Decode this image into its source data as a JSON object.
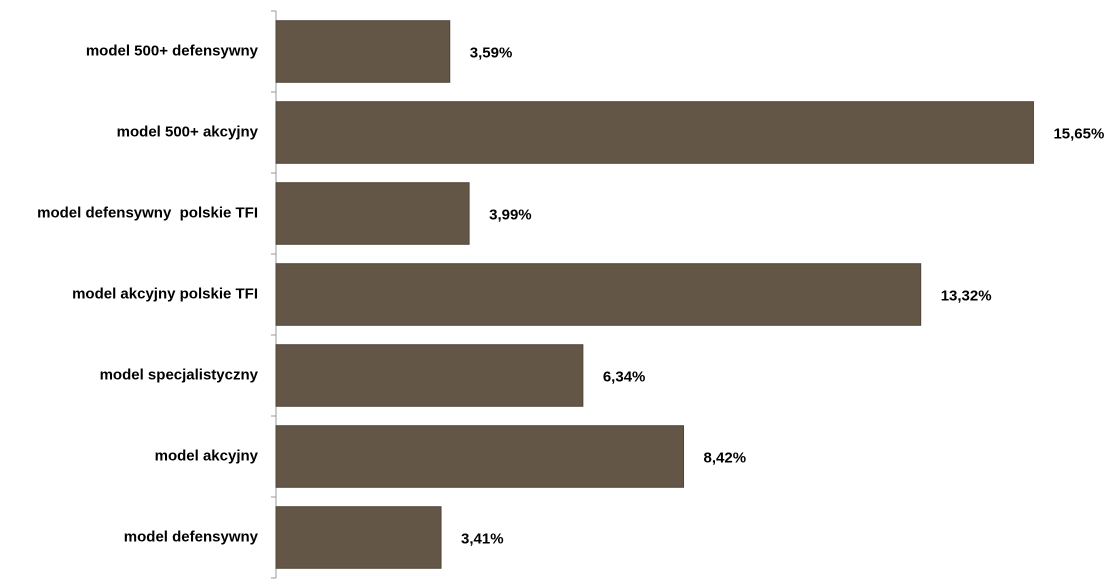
{
  "chart_data": {
    "type": "bar",
    "orientation": "horizontal",
    "categories": [
      "model 500+ defensywny",
      "model 500+ akcyjny",
      "model defensywny  polskie TFI",
      "model akcyjny polskie TFI",
      "model specjalistyczny",
      "model akcyjny",
      "model defensywny"
    ],
    "values": [
      3.59,
      15.65,
      3.99,
      13.32,
      6.34,
      8.42,
      3.41
    ],
    "value_labels": [
      "3,59%",
      "15,65%",
      "3,99%",
      "13,32%",
      "6,34%",
      "8,42%",
      "3,41%"
    ],
    "color": "#635646"
  }
}
